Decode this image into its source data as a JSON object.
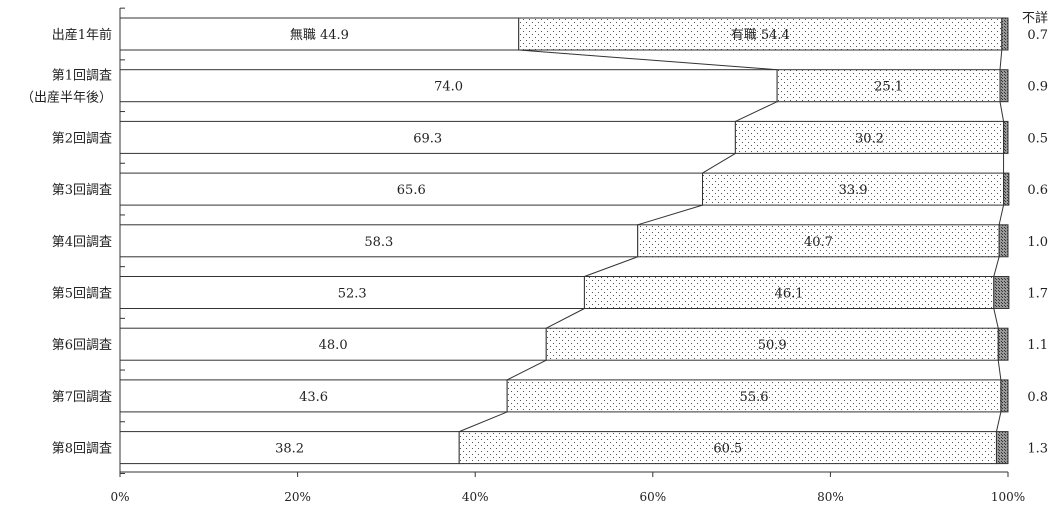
{
  "chart_data": {
    "type": "bar",
    "stacked": true,
    "orientation": "horizontal",
    "categories": [
      "出産1年前",
      "第1回調査（出産半年後）",
      "第2回調査",
      "第3回調査",
      "第4回調査",
      "第5回調査",
      "第6回調査",
      "第7回調査",
      "第8回調査"
    ],
    "category_lines": [
      [
        "出産1年前"
      ],
      [
        "第1回調査",
        "（出産半年後）"
      ],
      [
        "第2回調査"
      ],
      [
        "第3回調査"
      ],
      [
        "第4回調査"
      ],
      [
        "第5回調査"
      ],
      [
        "第6回調査"
      ],
      [
        "第7回調査"
      ],
      [
        "第8回調査"
      ]
    ],
    "series": [
      {
        "name": "無職",
        "values": [
          44.9,
          74.0,
          69.3,
          65.6,
          58.3,
          52.3,
          48.0,
          43.6,
          38.2
        ],
        "color": "#ffffff",
        "pattern": "none"
      },
      {
        "name": "有職",
        "values": [
          54.4,
          25.1,
          30.2,
          33.9,
          40.7,
          46.1,
          50.9,
          55.6,
          60.5
        ],
        "color": "#ffffff",
        "pattern": "dots"
      },
      {
        "name": "不詳",
        "values": [
          0.7,
          0.9,
          0.5,
          0.6,
          1.0,
          1.7,
          1.1,
          0.8,
          1.3
        ],
        "color": "#777777",
        "pattern": "dense"
      }
    ],
    "value_labels": [
      [
        "無職 44.9",
        "74.0",
        "69.3",
        "65.6",
        "58.3",
        "52.3",
        "48.0",
        "43.6",
        "38.2"
      ],
      [
        "有職 54.4",
        "25.1",
        "30.2",
        "33.9",
        "40.7",
        "46.1",
        "50.9",
        "55.6",
        "60.5"
      ],
      [
        "0.7",
        "0.9",
        "0.5",
        "0.6",
        "1.0",
        "1.7",
        "1.1",
        "0.8",
        "1.3"
      ]
    ],
    "unknown_header": "不詳",
    "x_ticks": [
      "0%",
      "20%",
      "40%",
      "60%",
      "80%",
      "100%"
    ],
    "xlim": [
      0,
      100
    ],
    "connector_lines": true,
    "legend": "none"
  }
}
